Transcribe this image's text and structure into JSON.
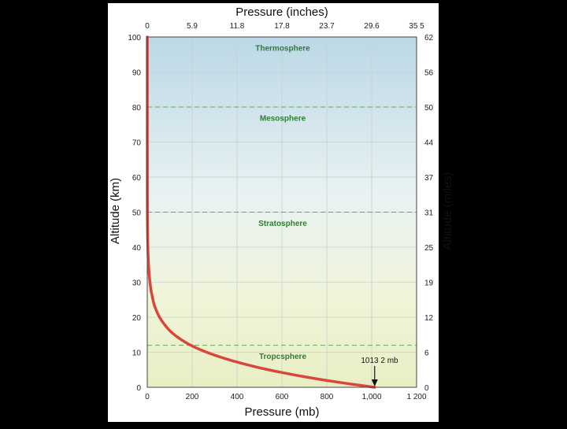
{
  "chart_data": {
    "type": "line",
    "title": "",
    "xlabel_bottom": "Pressure (mb)",
    "xlabel_top": "Pressure (inches)",
    "ylabel_left": "Altitude (km)",
    "ylabel_right": "Altitude (miles)",
    "xlim": [
      0,
      1200
    ],
    "ylim": [
      0,
      100
    ],
    "x_ticks_bottom": [
      {
        "value": 0,
        "label": "0"
      },
      {
        "value": 200,
        "label": "200"
      },
      {
        "value": 400,
        "label": "400"
      },
      {
        "value": 600,
        "label": "600"
      },
      {
        "value": 800,
        "label": "800"
      },
      {
        "value": 1000,
        "label": "1,000"
      },
      {
        "value": 1200,
        "label": "1 200"
      }
    ],
    "x_ticks_top": [
      {
        "value": 0,
        "label": "0"
      },
      {
        "value": 200,
        "label": "5.9"
      },
      {
        "value": 400,
        "label": "11.8"
      },
      {
        "value": 600,
        "label": "17.8"
      },
      {
        "value": 800,
        "label": "23.7"
      },
      {
        "value": 1000,
        "label": "29.6"
      },
      {
        "value": 1200,
        "label": "35 5"
      }
    ],
    "y_ticks_left": [
      {
        "value": 0,
        "label": "0"
      },
      {
        "value": 10,
        "label": "10"
      },
      {
        "value": 20,
        "label": "20"
      },
      {
        "value": 30,
        "label": "30"
      },
      {
        "value": 40,
        "label": "40"
      },
      {
        "value": 50,
        "label": "50"
      },
      {
        "value": 60,
        "label": "60"
      },
      {
        "value": 70,
        "label": "70"
      },
      {
        "value": 80,
        "label": "80"
      },
      {
        "value": 90,
        "label": "90"
      },
      {
        "value": 100,
        "label": "100"
      }
    ],
    "y_ticks_right": [
      {
        "value": 0,
        "label": "0"
      },
      {
        "value": 10,
        "label": "6"
      },
      {
        "value": 20,
        "label": "12"
      },
      {
        "value": 30,
        "label": "19"
      },
      {
        "value": 40,
        "label": "25"
      },
      {
        "value": 50,
        "label": "31"
      },
      {
        "value": 60,
        "label": "37"
      },
      {
        "value": 70,
        "label": "44"
      },
      {
        "value": 80,
        "label": "50"
      },
      {
        "value": 90,
        "label": "56"
      },
      {
        "value": 100,
        "label": "62"
      }
    ],
    "layer_boundaries_km": [
      12,
      50,
      80
    ],
    "layers": [
      {
        "name": "Thermosphere",
        "altitude_km": 97
      },
      {
        "name": "Mesosphere",
        "altitude_km": 77
      },
      {
        "name": "Stratosphere",
        "altitude_km": 47
      },
      {
        "name": "Tropcsphere",
        "altitude_km": 9
      }
    ],
    "annotation": {
      "text": "1013 2 mb",
      "pressure_mb": 1013.2,
      "altitude_km": 0
    },
    "grid": true,
    "line_color": "#d9463b",
    "boundary_color": "#5cab5c",
    "layer_label_color": "#2e7d32",
    "series": [
      {
        "x": [
          1013.2,
          899,
          795,
          701,
          617,
          540,
          472,
          411,
          357,
          308,
          265,
          194,
          142,
          103,
          76,
          55,
          40,
          29,
          22,
          16,
          12,
          8.9,
          6.6,
          4.9,
          3.6,
          2.6,
          1.9,
          1.4,
          1.0,
          0.5,
          0.2,
          0.05
        ],
        "y": [
          0,
          1,
          2,
          3,
          4,
          5,
          6,
          7,
          8,
          9,
          10,
          12,
          14,
          16,
          18,
          20,
          22,
          24,
          26,
          28,
          30,
          32,
          34,
          36,
          38,
          40,
          42,
          44,
          46,
          50,
          60,
          100
        ]
      }
    ]
  }
}
